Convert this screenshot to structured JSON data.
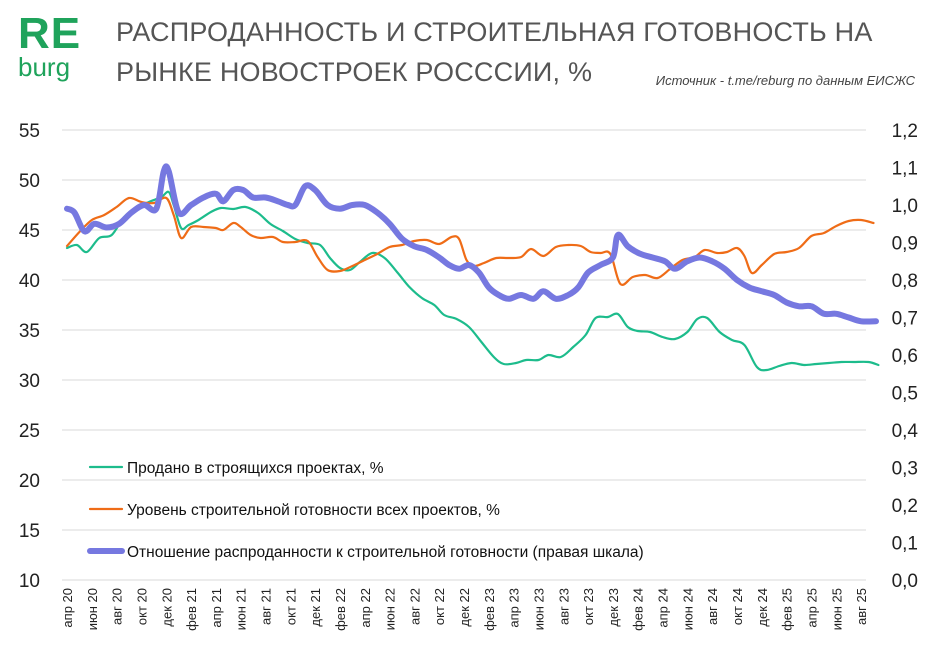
{
  "logo": {
    "top": "RE",
    "bottom": "burg"
  },
  "title": "РАСПРОДАННОСТЬ И СТРОИТЕЛЬНАЯ ГОТОВНОСТЬ НА РЫНКЕ НОВОСТРОЕК РОСССИИ, %",
  "source": "Источник - t.me/reburg по данным ЕИСЖС",
  "colors": {
    "sold": "#1dbc8c",
    "readiness": "#ef6c17",
    "ratio": "#7678e0",
    "grid": "#d9d9d9",
    "brand": "#1fa35b"
  },
  "chart_data": {
    "type": "line",
    "x_tick_labels": [
      "апр 20",
      "июн 20",
      "авг 20",
      "окт 20",
      "дек 20",
      "фев 21",
      "апр 21",
      "июн 21",
      "авг 21",
      "окт 21",
      "дек 21",
      "фев 22",
      "апр 22",
      "июн 22",
      "авг 22",
      "окт 22",
      "дек 22",
      "фев 23",
      "апр 23",
      "июн 23",
      "авг 23",
      "окт 23",
      "дек 23",
      "фев 24",
      "апр 24",
      "июн 24",
      "авг 24",
      "окт 24",
      "дек 24",
      "фев 25",
      "апр 25",
      "июн 25",
      "авг 25"
    ],
    "y_left": {
      "min": 10,
      "max": 55,
      "step": 5,
      "labels": [
        "10",
        "15",
        "20",
        "25",
        "30",
        "35",
        "40",
        "45",
        "50",
        "55"
      ]
    },
    "y_right": {
      "min": 0.0,
      "max": 1.2,
      "step": 0.1,
      "labels": [
        "0,0",
        "0,1",
        "0,2",
        "0,3",
        "0,4",
        "0,5",
        "0,6",
        "0,7",
        "0,8",
        "0,9",
        "1,0",
        "1,1",
        "1,2"
      ]
    },
    "grid": true,
    "legend_position": "bottom-left",
    "series": [
      {
        "name": "Продано в строящихся проектах, %",
        "axis": "left",
        "points": [
          [
            0,
            43.2
          ],
          [
            0.4,
            43.5
          ],
          [
            0.8,
            42.8
          ],
          [
            1.3,
            44.2
          ],
          [
            1.8,
            44.5
          ],
          [
            2.3,
            46.3
          ],
          [
            2.8,
            47.2
          ],
          [
            3.3,
            47.8
          ],
          [
            3.8,
            48.3
          ],
          [
            4.1,
            48.8
          ],
          [
            4.3,
            47.5
          ],
          [
            4.6,
            45.2
          ],
          [
            4.9,
            45.5
          ],
          [
            5.3,
            46.0
          ],
          [
            5.8,
            46.8
          ],
          [
            6.2,
            47.2
          ],
          [
            6.7,
            47.1
          ],
          [
            7.2,
            47.3
          ],
          [
            7.7,
            46.7
          ],
          [
            8.2,
            45.6
          ],
          [
            8.7,
            44.9
          ],
          [
            9.2,
            44.1
          ],
          [
            9.7,
            43.7
          ],
          [
            10.2,
            43.5
          ],
          [
            10.6,
            42.2
          ],
          [
            11.0,
            41.2
          ],
          [
            11.4,
            41.0
          ],
          [
            11.8,
            41.8
          ],
          [
            12.3,
            42.7
          ],
          [
            12.8,
            42.2
          ],
          [
            13.3,
            40.8
          ],
          [
            13.8,
            39.3
          ],
          [
            14.3,
            38.2
          ],
          [
            14.8,
            37.5
          ],
          [
            15.2,
            36.5
          ],
          [
            15.7,
            36.1
          ],
          [
            16.2,
            35.3
          ],
          [
            16.7,
            33.8
          ],
          [
            17.2,
            32.3
          ],
          [
            17.6,
            31.6
          ],
          [
            18.1,
            31.7
          ],
          [
            18.5,
            32.0
          ],
          [
            19.0,
            32.0
          ],
          [
            19.4,
            32.5
          ],
          [
            19.9,
            32.3
          ],
          [
            20.4,
            33.3
          ],
          [
            20.9,
            34.5
          ],
          [
            21.3,
            36.2
          ],
          [
            21.8,
            36.3
          ],
          [
            22.2,
            36.6
          ],
          [
            22.6,
            35.3
          ],
          [
            23.0,
            34.9
          ],
          [
            23.5,
            34.8
          ],
          [
            24.0,
            34.3
          ],
          [
            24.5,
            34.1
          ],
          [
            25.0,
            34.8
          ],
          [
            25.4,
            36.1
          ],
          [
            25.8,
            36.2
          ],
          [
            26.3,
            34.8
          ],
          [
            26.8,
            34.0
          ],
          [
            27.3,
            33.5
          ],
          [
            27.8,
            31.3
          ],
          [
            28.2,
            31.0
          ],
          [
            28.7,
            31.4
          ],
          [
            29.2,
            31.7
          ],
          [
            29.7,
            31.5
          ],
          [
            30.2,
            31.6
          ],
          [
            30.7,
            31.7
          ],
          [
            31.2,
            31.8
          ],
          [
            31.7,
            31.8
          ],
          [
            32.3,
            31.8
          ],
          [
            32.7,
            31.5
          ]
        ]
      },
      {
        "name": "Уровень строительной готовности всех проектов, %",
        "axis": "left",
        "points": [
          [
            0,
            43.4
          ],
          [
            0.5,
            44.8
          ],
          [
            1.0,
            46.0
          ],
          [
            1.5,
            46.5
          ],
          [
            2.0,
            47.3
          ],
          [
            2.5,
            48.2
          ],
          [
            3.0,
            47.8
          ],
          [
            3.5,
            47.7
          ],
          [
            4.0,
            48.2
          ],
          [
            4.3,
            46.5
          ],
          [
            4.6,
            44.2
          ],
          [
            5.0,
            45.3
          ],
          [
            5.5,
            45.3
          ],
          [
            6.0,
            45.2
          ],
          [
            6.3,
            45.0
          ],
          [
            6.7,
            45.7
          ],
          [
            7.0,
            45.3
          ],
          [
            7.4,
            44.5
          ],
          [
            7.8,
            44.2
          ],
          [
            8.3,
            44.3
          ],
          [
            8.7,
            43.8
          ],
          [
            9.2,
            43.8
          ],
          [
            9.7,
            43.9
          ],
          [
            10.1,
            42.3
          ],
          [
            10.5,
            41.0
          ],
          [
            11.0,
            40.9
          ],
          [
            11.5,
            41.4
          ],
          [
            12.0,
            42.0
          ],
          [
            12.5,
            42.6
          ],
          [
            13.0,
            43.3
          ],
          [
            13.5,
            43.5
          ],
          [
            14.0,
            43.9
          ],
          [
            14.5,
            44.0
          ],
          [
            15.0,
            43.6
          ],
          [
            15.5,
            44.3
          ],
          [
            15.8,
            44.1
          ],
          [
            16.1,
            42.0
          ],
          [
            16.4,
            41.4
          ],
          [
            16.8,
            41.7
          ],
          [
            17.3,
            42.2
          ],
          [
            17.8,
            42.2
          ],
          [
            18.3,
            42.3
          ],
          [
            18.7,
            43.1
          ],
          [
            19.2,
            42.4
          ],
          [
            19.7,
            43.3
          ],
          [
            20.2,
            43.5
          ],
          [
            20.7,
            43.4
          ],
          [
            21.1,
            42.8
          ],
          [
            21.5,
            42.7
          ],
          [
            21.9,
            42.6
          ],
          [
            22.3,
            39.6
          ],
          [
            22.8,
            40.3
          ],
          [
            23.3,
            40.5
          ],
          [
            23.8,
            40.2
          ],
          [
            24.3,
            41.1
          ],
          [
            24.8,
            42.0
          ],
          [
            25.3,
            42.3
          ],
          [
            25.7,
            43.0
          ],
          [
            26.2,
            42.7
          ],
          [
            26.6,
            42.8
          ],
          [
            27.0,
            43.2
          ],
          [
            27.3,
            42.4
          ],
          [
            27.6,
            40.7
          ],
          [
            28.0,
            41.5
          ],
          [
            28.5,
            42.6
          ],
          [
            29.0,
            42.8
          ],
          [
            29.5,
            43.2
          ],
          [
            30.0,
            44.4
          ],
          [
            30.5,
            44.7
          ],
          [
            31.0,
            45.4
          ],
          [
            31.5,
            45.9
          ],
          [
            32.0,
            46.0
          ],
          [
            32.5,
            45.7
          ]
        ]
      },
      {
        "name": "Отношение распроданности к строительной готовности (правая шкала)",
        "axis": "right",
        "points": [
          [
            0,
            0.99
          ],
          [
            0.3,
            0.98
          ],
          [
            0.7,
            0.93
          ],
          [
            1.1,
            0.95
          ],
          [
            1.6,
            0.94
          ],
          [
            2.1,
            0.95
          ],
          [
            2.6,
            0.98
          ],
          [
            3.1,
            1.0
          ],
          [
            3.6,
            0.99
          ],
          [
            3.9,
            1.09
          ],
          [
            4.1,
            1.09
          ],
          [
            4.5,
            0.98
          ],
          [
            5.0,
            1.0
          ],
          [
            5.5,
            1.02
          ],
          [
            6.0,
            1.03
          ],
          [
            6.3,
            1.01
          ],
          [
            6.7,
            1.04
          ],
          [
            7.1,
            1.04
          ],
          [
            7.5,
            1.02
          ],
          [
            8.0,
            1.02
          ],
          [
            8.5,
            1.01
          ],
          [
            8.9,
            1.0
          ],
          [
            9.2,
            1.0
          ],
          [
            9.6,
            1.05
          ],
          [
            10.0,
            1.04
          ],
          [
            10.5,
            1.0
          ],
          [
            11.0,
            0.99
          ],
          [
            11.5,
            1.0
          ],
          [
            12.0,
            1.0
          ],
          [
            12.5,
            0.98
          ],
          [
            13.0,
            0.95
          ],
          [
            13.5,
            0.91
          ],
          [
            14.0,
            0.89
          ],
          [
            14.5,
            0.88
          ],
          [
            15.0,
            0.86
          ],
          [
            15.4,
            0.84
          ],
          [
            15.8,
            0.83
          ],
          [
            16.2,
            0.84
          ],
          [
            16.6,
            0.82
          ],
          [
            17.0,
            0.78
          ],
          [
            17.4,
            0.76
          ],
          [
            17.8,
            0.75
          ],
          [
            18.3,
            0.76
          ],
          [
            18.8,
            0.75
          ],
          [
            19.2,
            0.77
          ],
          [
            19.7,
            0.75
          ],
          [
            20.2,
            0.76
          ],
          [
            20.6,
            0.78
          ],
          [
            21.0,
            0.82
          ],
          [
            21.5,
            0.84
          ],
          [
            22.0,
            0.86
          ],
          [
            22.2,
            0.92
          ],
          [
            22.6,
            0.89
          ],
          [
            23.1,
            0.87
          ],
          [
            23.6,
            0.86
          ],
          [
            24.1,
            0.85
          ],
          [
            24.5,
            0.83
          ],
          [
            25.0,
            0.85
          ],
          [
            25.5,
            0.86
          ],
          [
            26.0,
            0.85
          ],
          [
            26.5,
            0.83
          ],
          [
            27.0,
            0.8
          ],
          [
            27.5,
            0.78
          ],
          [
            28.0,
            0.77
          ],
          [
            28.5,
            0.76
          ],
          [
            29.0,
            0.74
          ],
          [
            29.5,
            0.73
          ],
          [
            30.0,
            0.73
          ],
          [
            30.5,
            0.71
          ],
          [
            31.0,
            0.71
          ],
          [
            31.5,
            0.7
          ],
          [
            32.0,
            0.69
          ],
          [
            32.6,
            0.69
          ]
        ]
      }
    ]
  }
}
